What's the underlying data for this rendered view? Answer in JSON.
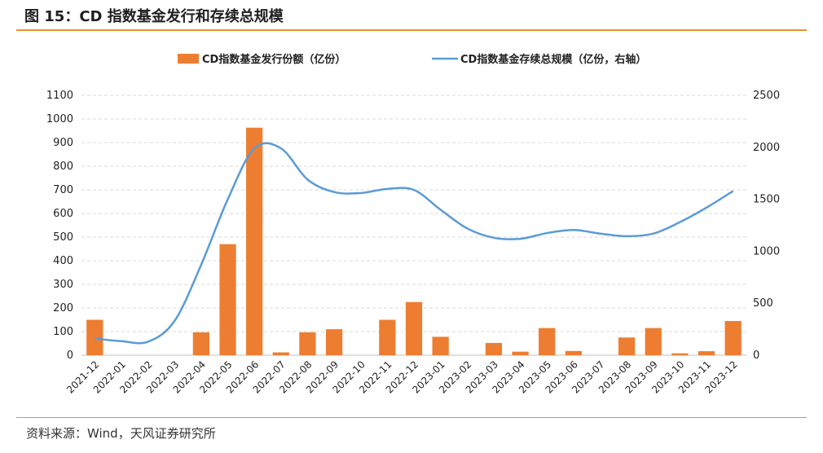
{
  "figure": {
    "title": "图 15：CD 指数基金发行和存续总规模",
    "source": "资料来源：Wind，天风证券研究所"
  },
  "colors": {
    "bar": "#ed7d31",
    "line": "#5b9bd5",
    "rule": "#e8902c",
    "grid": "#d9d9d9"
  },
  "chart_data": {
    "type": "bar",
    "categories": [
      "2021-12",
      "2022-01",
      "2022-02",
      "2022-03",
      "2022-04",
      "2022-05",
      "2022-06",
      "2022-07",
      "2022-08",
      "2022-09",
      "2022-10",
      "2022-11",
      "2022-12",
      "2023-01",
      "2023-02",
      "2023-03",
      "2023-04",
      "2023-05",
      "2023-06",
      "2023-07",
      "2023-08",
      "2023-09",
      "2023-10",
      "2023-11",
      "2023-12"
    ],
    "series": [
      {
        "name": "CD指数基金发行份额（亿份）",
        "type": "bar",
        "axis": "left",
        "values": [
          150,
          0,
          0,
          0,
          97,
          470,
          963,
          12,
          97,
          110,
          0,
          150,
          225,
          78,
          0,
          52,
          15,
          115,
          18,
          0,
          75,
          115,
          8,
          17,
          145
        ]
      },
      {
        "name": "CD指数基金存续总规模（亿份，右轴）",
        "type": "line",
        "axis": "right",
        "values": [
          160,
          135,
          130,
          330,
          870,
          1500,
          1990,
          1990,
          1690,
          1570,
          1560,
          1600,
          1590,
          1400,
          1220,
          1130,
          1120,
          1175,
          1205,
          1170,
          1145,
          1170,
          1280,
          1420,
          1580
        ]
      }
    ],
    "y_left": {
      "min": 0,
      "max": 1100,
      "ticks": [
        0,
        100,
        200,
        300,
        400,
        500,
        600,
        700,
        800,
        900,
        1000,
        1100
      ]
    },
    "y_right": {
      "min": 0,
      "max": 2500,
      "ticks": [
        0,
        500,
        1000,
        1500,
        2000,
        2500
      ]
    },
    "grid": true,
    "legend_position": "top"
  }
}
